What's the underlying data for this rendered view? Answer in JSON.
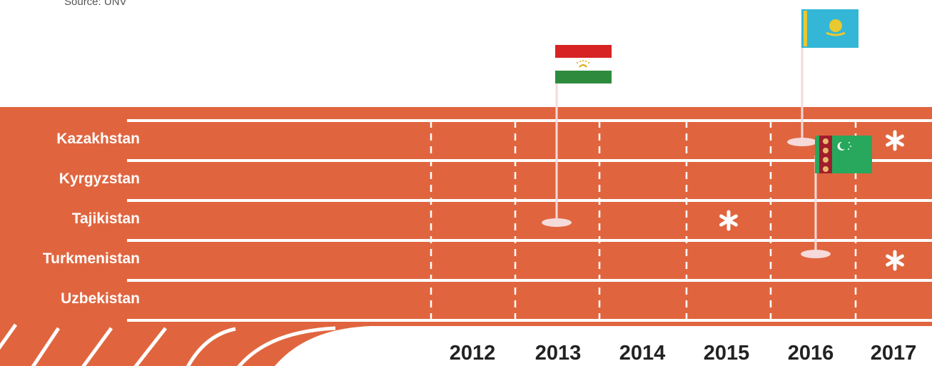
{
  "source": "Source: UNV",
  "colors": {
    "track": "#e0653f",
    "lines": "#ffffff",
    "flag_base": "#f6dada"
  },
  "chart_data": {
    "type": "timeline",
    "title": "",
    "countries": [
      "Kazakhstan",
      "Kyrgyzstan",
      "Tajikistan",
      "Turkmenistan",
      "Uzbekistan"
    ],
    "years": [
      "2012",
      "2013",
      "2014",
      "2015",
      "2016",
      "2017"
    ],
    "flag_events": [
      {
        "country": "Tajikistan",
        "year": 2013,
        "flag_icon": "tajikistan-flag-icon"
      },
      {
        "country": "Kazakhstan",
        "year": 2016,
        "flag_icon": "kazakhstan-flag-icon"
      },
      {
        "country": "Turkmenistan",
        "year": 2016,
        "flag_icon": "turkmenistan-flag-icon"
      }
    ],
    "asterisk_events": [
      {
        "country": "Kazakhstan",
        "year": 2017
      },
      {
        "country": "Tajikistan",
        "year": 2015
      },
      {
        "country": "Turkmenistan",
        "year": 2017
      }
    ],
    "marker_icon": "asterisk-icon"
  }
}
